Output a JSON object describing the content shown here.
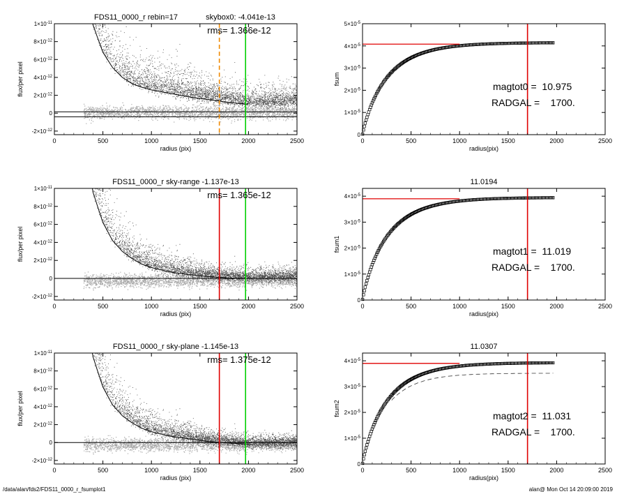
{
  "footer": {
    "path": "/data/alan/fds2/FDS11_0000_r_fsumplot1",
    "stamp": "alan@  Mon Oct 14 20:09:00 2019"
  },
  "colors": {
    "scatter_dark": "#4a4a4a",
    "scatter_light": "#a8a8a8",
    "red": "#e00000",
    "green": "#00d000",
    "orange": "#f08a00",
    "profile": "#000000"
  },
  "chart_data": [
    {
      "id": "profile-1",
      "type": "scatter",
      "title": "FDS11_0000_r rebin=17",
      "title2": "skybox0: -4.041e-13",
      "rms_text": "rms= 1.366e-12",
      "xlabel": "radius (pix)",
      "ylabel": "flux/per pixel",
      "xlim": [
        0,
        2500
      ],
      "ylim": [
        -2.4e-12,
        1e-11
      ],
      "xticks": [
        0,
        500,
        1000,
        1500,
        2000,
        2500
      ],
      "yticks": [
        {
          "v": 1e-11,
          "m": "1×10",
          "e": "-11"
        },
        {
          "v": 8e-12,
          "m": "8×10",
          "e": "-12"
        },
        {
          "v": 6e-12,
          "m": "6×10",
          "e": "-12"
        },
        {
          "v": 4e-12,
          "m": "4×10",
          "e": "-12"
        },
        {
          "v": 2e-12,
          "m": "2×10",
          "e": "-12"
        },
        {
          "v": 0,
          "m": "0",
          "e": ""
        },
        {
          "v": -2e-12,
          "m": "-2×10",
          "e": "-12"
        }
      ],
      "vlines": [
        {
          "x": 1700,
          "color": "orange",
          "dash": true
        },
        {
          "x": 1970,
          "color": "green",
          "dash": false
        }
      ],
      "hlines": [
        -4.041e-13,
        1.5e-13
      ],
      "profile_x": [
        400,
        500,
        600,
        700,
        800,
        900,
        1000,
        1200,
        1400,
        1600,
        1800,
        2000
      ],
      "profile_y": [
        9.5e-12,
        6.5e-12,
        4.8e-12,
        3.7e-12,
        3e-12,
        2.6e-12,
        2.3e-12,
        1.9e-12,
        1.5e-12,
        1.2e-12,
        9e-13,
        7e-13
      ],
      "sky_offset": 3e-13
    },
    {
      "id": "fsum-1",
      "type": "line",
      "title": "",
      "xlabel": "radius(pix)",
      "ylabel": "fsum",
      "xlim": [
        0,
        2500
      ],
      "ylim": [
        0,
        5e-05
      ],
      "xticks": [
        0,
        500,
        1000,
        1500,
        2000,
        2500
      ],
      "yticks": [
        {
          "v": 5e-05,
          "m": "5×10",
          "e": "-5"
        },
        {
          "v": 4e-05,
          "m": "4×10",
          "e": "-5"
        },
        {
          "v": 3e-05,
          "m": "3×10",
          "e": "-5"
        },
        {
          "v": 2e-05,
          "m": "2×10",
          "e": "-5"
        },
        {
          "v": 1e-05,
          "m": "1×10",
          "e": "-5"
        },
        {
          "v": 0,
          "m": "0",
          "e": ""
        }
      ],
      "asymptote": 4.15e-05,
      "hline": {
        "y": 4.08e-05,
        "x0": 0,
        "x1": 1000
      },
      "vline": 1700,
      "r_max": 1970,
      "dashed": null,
      "mag_text": "magtot0 =  10.975",
      "radgal_text": "RADGAL =    1700."
    },
    {
      "id": "profile-2",
      "type": "scatter",
      "title": "FDS11_0000_r sky-range -1.137e-13",
      "title2": "",
      "rms_text": "rms= 1.365e-12",
      "xlabel": "radius (pix)",
      "ylabel": "flux/per pixel",
      "xlim": [
        0,
        2500
      ],
      "ylim": [
        -2.4e-12,
        1e-11
      ],
      "xticks": [
        0,
        500,
        1000,
        1500,
        2000,
        2500
      ],
      "yticks": [
        {
          "v": 1e-11,
          "m": "1×10",
          "e": "-11"
        },
        {
          "v": 8e-12,
          "m": "8×10",
          "e": "-12"
        },
        {
          "v": 6e-12,
          "m": "6×10",
          "e": "-12"
        },
        {
          "v": 4e-12,
          "m": "4×10",
          "e": "-12"
        },
        {
          "v": 2e-12,
          "m": "2×10",
          "e": "-12"
        },
        {
          "v": 0,
          "m": "0",
          "e": ""
        },
        {
          "v": -2e-12,
          "m": "-2×10",
          "e": "-12"
        }
      ],
      "vlines": [
        {
          "x": 1700,
          "color": "red",
          "dash": false
        },
        {
          "x": 1970,
          "color": "green",
          "dash": false
        }
      ],
      "hlines": [
        0
      ],
      "profile_x": [
        400,
        500,
        600,
        700,
        800,
        900,
        1000,
        1200,
        1400,
        1600,
        1800,
        2000
      ],
      "profile_y": [
        9.5e-12,
        6.2e-12,
        4.2e-12,
        3e-12,
        2.2e-12,
        1.6e-12,
        1.2e-12,
        7e-13,
        4e-13,
        2e-13,
        5e-14,
        0.0
      ],
      "sky_offset": 0
    },
    {
      "id": "fsum-2",
      "type": "line",
      "title": "11.0194",
      "xlabel": "radius(pix)",
      "ylabel": "fsum1",
      "xlim": [
        0,
        2500
      ],
      "ylim": [
        0,
        4.3e-05
      ],
      "xticks": [
        0,
        500,
        1000,
        1500,
        2000,
        2500
      ],
      "yticks": [
        {
          "v": 4e-05,
          "m": "4×10",
          "e": "-5"
        },
        {
          "v": 3e-05,
          "m": "3×10",
          "e": "-5"
        },
        {
          "v": 2e-05,
          "m": "2×10",
          "e": "-5"
        },
        {
          "v": 1e-05,
          "m": "1×10",
          "e": "-5"
        },
        {
          "v": 0,
          "m": "0",
          "e": ""
        }
      ],
      "asymptote": 3.95e-05,
      "hline": {
        "y": 3.9e-05,
        "x0": 0,
        "x1": 1000
      },
      "vline": 1700,
      "r_max": 1970,
      "dashed": null,
      "mag_text": "magtot1 =  11.019",
      "radgal_text": "RADGAL =    1700."
    },
    {
      "id": "profile-3",
      "type": "scatter",
      "title": "FDS11_0000_r sky-plane -1.145e-13",
      "title2": "",
      "rms_text": "rms= 1.375e-12",
      "xlabel": "radius (pix)",
      "ylabel": "flux/per pixel",
      "xlim": [
        0,
        2500
      ],
      "ylim": [
        -2.4e-12,
        1e-11
      ],
      "xticks": [
        0,
        500,
        1000,
        1500,
        2000,
        2500
      ],
      "yticks": [
        {
          "v": 1e-11,
          "m": "1×10",
          "e": "-11"
        },
        {
          "v": 8e-12,
          "m": "8×10",
          "e": "-12"
        },
        {
          "v": 6e-12,
          "m": "6×10",
          "e": "-12"
        },
        {
          "v": 4e-12,
          "m": "4×10",
          "e": "-12"
        },
        {
          "v": 2e-12,
          "m": "2×10",
          "e": "-12"
        },
        {
          "v": 0,
          "m": "0",
          "e": ""
        },
        {
          "v": -2e-12,
          "m": "-2×10",
          "e": "-12"
        }
      ],
      "vlines": [
        {
          "x": 1700,
          "color": "red",
          "dash": false
        },
        {
          "x": 1970,
          "color": "green",
          "dash": false
        }
      ],
      "hlines": [
        0
      ],
      "profile_x": [
        400,
        500,
        600,
        700,
        800,
        900,
        1000,
        1200,
        1400,
        1600,
        1800,
        2000
      ],
      "profile_y": [
        9.5e-12,
        6.2e-12,
        4.2e-12,
        3e-12,
        2.2e-12,
        1.6e-12,
        1.2e-12,
        7e-13,
        4e-13,
        1e-13,
        -5e-14,
        -2e-13
      ],
      "sky_offset": 0
    },
    {
      "id": "fsum-3",
      "type": "line",
      "title": "11.0307",
      "xlabel": "radius(pix)",
      "ylabel": "fsum2",
      "xlim": [
        0,
        2500
      ],
      "ylim": [
        0,
        4.3e-05
      ],
      "xticks": [
        0,
        500,
        1000,
        1500,
        2000,
        2500
      ],
      "yticks": [
        {
          "v": 4e-05,
          "m": "4×10",
          "e": "-5"
        },
        {
          "v": 3e-05,
          "m": "3×10",
          "e": "-5"
        },
        {
          "v": 2e-05,
          "m": "2×10",
          "e": "-5"
        },
        {
          "v": 1e-05,
          "m": "1×10",
          "e": "-5"
        },
        {
          "v": 0,
          "m": "0",
          "e": ""
        }
      ],
      "asymptote": 3.93e-05,
      "hline": {
        "y": 3.9e-05,
        "x0": 0,
        "x1": 1000
      },
      "vline": 1700,
      "r_max": 1970,
      "dashed": {
        "asymptote": 3.52e-05
      },
      "mag_text": "magtot2 =  11.031",
      "radgal_text": "RADGAL =    1700."
    }
  ]
}
